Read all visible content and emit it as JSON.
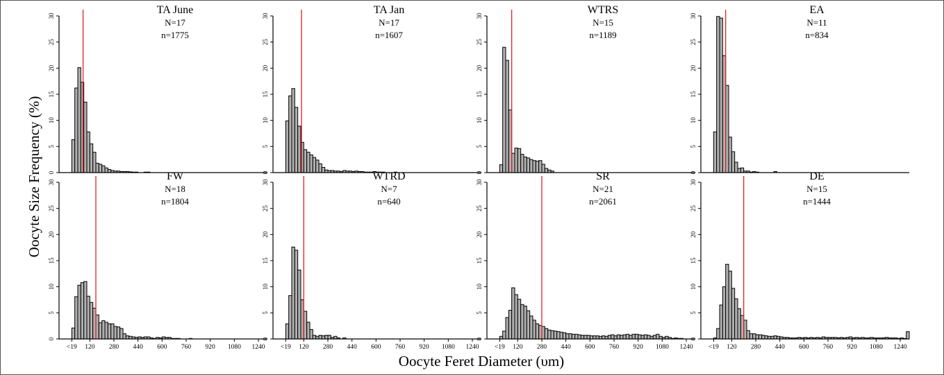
{
  "figure": {
    "ylabel": "Oocyte Size Frequency (%)",
    "xlabel": "Oocyte Feret Diameter (υm)"
  },
  "colors": {
    "bar_fill": "#b0b0b0",
    "bar_stroke": "#000000",
    "median_line": "#e02020"
  },
  "chart_data": [
    {
      "type": "bar",
      "title": "TA June",
      "N": "N=17",
      "n": "n=1775",
      "bin_width": 20,
      "xlim": [
        -20,
        1300
      ],
      "ylim": [
        0,
        30
      ],
      "median_line_x": 75,
      "x_tick_values": [],
      "x_tick_labels": [],
      "y_ticks": [
        0,
        5,
        10,
        15,
        20,
        25,
        30
      ],
      "values": [
        6.3,
        16.2,
        20.1,
        17.3,
        13.5,
        7.8,
        5.5,
        3.9,
        1.8,
        1.6,
        1.3,
        0.9,
        0.6,
        0.4,
        0.3,
        0.3,
        0.2,
        0.2,
        0.2,
        0.15,
        0.1,
        0.1,
        0,
        0,
        0.1,
        0.1
      ]
    },
    {
      "type": "bar",
      "title": "TA Jan",
      "N": "N=17",
      "n": "n=1607",
      "bin_width": 20,
      "xlim": [
        -20,
        1300
      ],
      "ylim": [
        0,
        30
      ],
      "median_line_x": 105,
      "x_tick_values": [],
      "x_tick_labels": [],
      "y_ticks": [
        0,
        5,
        10,
        15,
        20,
        25,
        30
      ],
      "values": [
        9.9,
        14.7,
        16.1,
        12.5,
        8.9,
        5.8,
        4.4,
        3.9,
        3.4,
        2.9,
        2.4,
        1.7,
        1.0,
        0.5,
        0.4,
        0.4,
        0.3,
        0.3,
        0.2,
        0.4,
        0.3,
        0.3,
        0.2,
        0.3,
        0.2,
        0.2,
        0.1,
        0.1,
        0.1,
        0.2,
        0.1,
        0.1,
        0.1,
        0,
        0,
        0,
        0.1
      ]
    },
    {
      "type": "bar",
      "title": "WTRS",
      "N": "N=15",
      "n": "n=1189",
      "bin_width": 20,
      "xlim": [
        -20,
        1300
      ],
      "ylim": [
        0,
        30
      ],
      "median_line_x": 80,
      "x_tick_values": [],
      "x_tick_labels": [],
      "y_ticks": [
        0,
        5,
        10,
        15,
        20,
        25,
        30
      ],
      "values": [
        1.5,
        24.0,
        21.5,
        12.0,
        3.7,
        4.7,
        4.6,
        3.5,
        3.0,
        2.8,
        2.5,
        2.3,
        2.2,
        2.3,
        1.6,
        0.8,
        0.5,
        0.3
      ]
    },
    {
      "type": "bar",
      "title": "EA",
      "N": "N=11",
      "n": "n=834",
      "bin_width": 20,
      "xlim": [
        -20,
        1300
      ],
      "ylim": [
        0,
        30
      ],
      "median_line_x": 80,
      "x_tick_values": [],
      "x_tick_labels": [],
      "y_ticks": [
        0,
        5,
        10,
        15,
        20,
        25,
        30
      ],
      "values": [
        7.8,
        29.9,
        29.6,
        22.4,
        16.7,
        6.8,
        4.0,
        2.0,
        0.8,
        0.9,
        0.3,
        0.3,
        0.1,
        0.2,
        0.1,
        0,
        0,
        0,
        0,
        0,
        0.2
      ]
    },
    {
      "type": "bar",
      "title": "FW",
      "N": "N=18",
      "n": "n=1804",
      "bin_width": 20,
      "xlim": [
        -20,
        1300
      ],
      "ylim": [
        0,
        30
      ],
      "median_line_x": 160,
      "x_tick_values": [
        0,
        120,
        280,
        440,
        600,
        760,
        920,
        1080,
        1240
      ],
      "x_tick_labels": [
        "<19",
        "120",
        "280",
        "440",
        "600",
        "760",
        "920",
        "1080",
        "1240"
      ],
      "y_ticks": [
        0,
        5,
        10,
        15,
        20,
        25,
        30
      ],
      "values": [
        2.1,
        8.1,
        10.3,
        10.8,
        11.0,
        8.2,
        7.0,
        5.9,
        4.6,
        3.1,
        3.5,
        3.2,
        2.9,
        2.9,
        2.4,
        2.3,
        2.0,
        1.0,
        0.6,
        0.5,
        0.4,
        0.3,
        0.4,
        0.3,
        0.4,
        0.4,
        0.2,
        0.1,
        0.3,
        0.2,
        0.4,
        0.3,
        0.3,
        0.1,
        0.1,
        0.1,
        0,
        0,
        0,
        0.1
      ]
    },
    {
      "type": "bar",
      "title": "WTRD",
      "N": "N=7",
      "n": "n=640",
      "bin_width": 20,
      "xlim": [
        -20,
        1300
      ],
      "ylim": [
        0,
        30
      ],
      "median_line_x": 120,
      "x_tick_values": [
        0,
        120,
        280,
        440,
        600,
        760,
        920,
        1080,
        1240
      ],
      "x_tick_labels": [
        "<19",
        "120",
        "280",
        "440",
        "600",
        "760",
        "920",
        "1080",
        "1240"
      ],
      "y_ticks": [
        0,
        5,
        10,
        15,
        20,
        25,
        30
      ],
      "values": [
        2.9,
        8.3,
        17.6,
        17.0,
        13.2,
        7.5,
        5.3,
        3.2,
        1.8,
        0.7,
        0.5,
        0.7,
        0.6,
        0.7,
        0.7,
        0.3,
        0.5,
        0.2,
        0,
        0.2
      ]
    },
    {
      "type": "bar",
      "title": "SR",
      "N": "N=21",
      "n": "n=2061",
      "bin_width": 20,
      "xlim": [
        -20,
        1300
      ],
      "ylim": [
        0,
        30
      ],
      "median_line_x": 280,
      "x_tick_values": [
        0,
        120,
        280,
        440,
        600,
        760,
        920,
        1080,
        1240
      ],
      "x_tick_labels": [
        "<19",
        "120",
        "280",
        "440",
        "600",
        "760",
        "920",
        "1080",
        "1240"
      ],
      "y_ticks": [
        0,
        5,
        10,
        15,
        20,
        25,
        30
      ],
      "values": [
        0.5,
        1.5,
        4.1,
        5.5,
        9.8,
        8.5,
        7.6,
        6.6,
        6.3,
        5.4,
        4.4,
        3.6,
        2.9,
        2.6,
        2.4,
        2.0,
        1.7,
        1.6,
        1.5,
        1.4,
        1.3,
        1.2,
        1.0,
        1.0,
        0.9,
        0.9,
        0.8,
        0.7,
        0.7,
        0.7,
        0.6,
        0.6,
        0.6,
        0.5,
        0.6,
        0.5,
        0.7,
        0.8,
        0.6,
        0.8,
        0.7,
        0.8,
        0.9,
        0.7,
        0.9,
        0.9,
        0.8,
        0.7,
        0.8,
        0.7,
        0.5,
        0.7,
        0.9,
        0.5,
        0.3,
        0.5,
        0.3,
        0.1,
        0.2,
        0.1,
        0.1
      ]
    },
    {
      "type": "bar",
      "title": "DE",
      "N": "N=15",
      "n": "n=1444",
      "bin_width": 20,
      "xlim": [
        -20,
        1300
      ],
      "ylim": [
        0,
        30
      ],
      "median_line_x": 200,
      "x_tick_values": [
        0,
        120,
        280,
        440,
        600,
        760,
        920,
        1080,
        1240
      ],
      "x_tick_labels": [
        "<19",
        "120",
        "280",
        "440",
        "600",
        "760",
        "920",
        "1080",
        "1240"
      ],
      "y_ticks": [
        0,
        5,
        10,
        15,
        20,
        25,
        30
      ],
      "values": [
        0.2,
        2.0,
        6.5,
        10.0,
        14.3,
        13.0,
        9.7,
        7.7,
        5.8,
        4.5,
        3.6,
        1.6,
        1.0,
        1.0,
        0.8,
        0.8,
        0.7,
        0.6,
        0.5,
        0.5,
        0.6,
        0.5,
        0.4,
        0.3,
        0.3,
        0.2,
        0.2,
        0.2,
        0.3,
        0.2,
        0.3,
        0.2,
        0.3,
        0.2,
        0.3,
        0.2,
        0.4,
        0.3,
        0.3,
        0.3,
        0.3,
        0.2,
        0.3,
        0.2,
        0.3,
        0.4,
        0.2,
        0.3,
        0.2,
        0.3,
        0.2,
        0.2,
        0.3,
        0.2,
        0.2,
        0.2,
        0.2,
        0.3,
        0.2,
        0.2,
        0.2,
        0.1,
        0.2,
        0.1,
        1.4
      ]
    }
  ]
}
